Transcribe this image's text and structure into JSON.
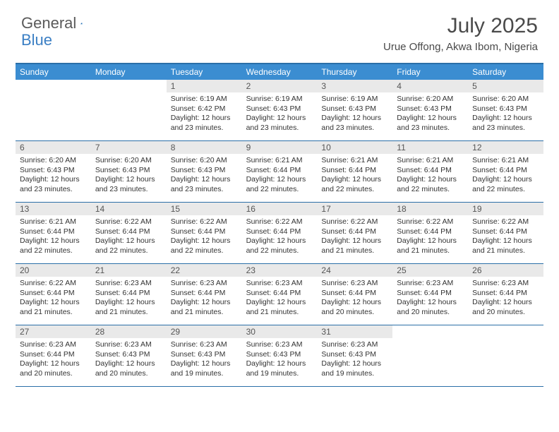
{
  "brand": {
    "part1": "General",
    "part2": "Blue"
  },
  "title": "July 2025",
  "location": "Urue Offong, Akwa Ibom, Nigeria",
  "colors": {
    "header_bg": "#3b8dd1",
    "header_text": "#ffffff",
    "border": "#2b6fa8",
    "daynum_bg": "#e9e9e9",
    "text": "#333333",
    "brand_blue": "#3b7fc4"
  },
  "weekdays": [
    "Sunday",
    "Monday",
    "Tuesday",
    "Wednesday",
    "Thursday",
    "Friday",
    "Saturday"
  ],
  "cells": [
    {
      "day": "",
      "lines": []
    },
    {
      "day": "",
      "lines": []
    },
    {
      "day": "1",
      "lines": [
        "Sunrise: 6:19 AM",
        "Sunset: 6:42 PM",
        "Daylight: 12 hours and 23 minutes."
      ]
    },
    {
      "day": "2",
      "lines": [
        "Sunrise: 6:19 AM",
        "Sunset: 6:43 PM",
        "Daylight: 12 hours and 23 minutes."
      ]
    },
    {
      "day": "3",
      "lines": [
        "Sunrise: 6:19 AM",
        "Sunset: 6:43 PM",
        "Daylight: 12 hours and 23 minutes."
      ]
    },
    {
      "day": "4",
      "lines": [
        "Sunrise: 6:20 AM",
        "Sunset: 6:43 PM",
        "Daylight: 12 hours and 23 minutes."
      ]
    },
    {
      "day": "5",
      "lines": [
        "Sunrise: 6:20 AM",
        "Sunset: 6:43 PM",
        "Daylight: 12 hours and 23 minutes."
      ]
    },
    {
      "day": "6",
      "lines": [
        "Sunrise: 6:20 AM",
        "Sunset: 6:43 PM",
        "Daylight: 12 hours and 23 minutes."
      ]
    },
    {
      "day": "7",
      "lines": [
        "Sunrise: 6:20 AM",
        "Sunset: 6:43 PM",
        "Daylight: 12 hours and 23 minutes."
      ]
    },
    {
      "day": "8",
      "lines": [
        "Sunrise: 6:20 AM",
        "Sunset: 6:43 PM",
        "Daylight: 12 hours and 23 minutes."
      ]
    },
    {
      "day": "9",
      "lines": [
        "Sunrise: 6:21 AM",
        "Sunset: 6:44 PM",
        "Daylight: 12 hours and 22 minutes."
      ]
    },
    {
      "day": "10",
      "lines": [
        "Sunrise: 6:21 AM",
        "Sunset: 6:44 PM",
        "Daylight: 12 hours and 22 minutes."
      ]
    },
    {
      "day": "11",
      "lines": [
        "Sunrise: 6:21 AM",
        "Sunset: 6:44 PM",
        "Daylight: 12 hours and 22 minutes."
      ]
    },
    {
      "day": "12",
      "lines": [
        "Sunrise: 6:21 AM",
        "Sunset: 6:44 PM",
        "Daylight: 12 hours and 22 minutes."
      ]
    },
    {
      "day": "13",
      "lines": [
        "Sunrise: 6:21 AM",
        "Sunset: 6:44 PM",
        "Daylight: 12 hours and 22 minutes."
      ]
    },
    {
      "day": "14",
      "lines": [
        "Sunrise: 6:22 AM",
        "Sunset: 6:44 PM",
        "Daylight: 12 hours and 22 minutes."
      ]
    },
    {
      "day": "15",
      "lines": [
        "Sunrise: 6:22 AM",
        "Sunset: 6:44 PM",
        "Daylight: 12 hours and 22 minutes."
      ]
    },
    {
      "day": "16",
      "lines": [
        "Sunrise: 6:22 AM",
        "Sunset: 6:44 PM",
        "Daylight: 12 hours and 22 minutes."
      ]
    },
    {
      "day": "17",
      "lines": [
        "Sunrise: 6:22 AM",
        "Sunset: 6:44 PM",
        "Daylight: 12 hours and 21 minutes."
      ]
    },
    {
      "day": "18",
      "lines": [
        "Sunrise: 6:22 AM",
        "Sunset: 6:44 PM",
        "Daylight: 12 hours and 21 minutes."
      ]
    },
    {
      "day": "19",
      "lines": [
        "Sunrise: 6:22 AM",
        "Sunset: 6:44 PM",
        "Daylight: 12 hours and 21 minutes."
      ]
    },
    {
      "day": "20",
      "lines": [
        "Sunrise: 6:22 AM",
        "Sunset: 6:44 PM",
        "Daylight: 12 hours and 21 minutes."
      ]
    },
    {
      "day": "21",
      "lines": [
        "Sunrise: 6:23 AM",
        "Sunset: 6:44 PM",
        "Daylight: 12 hours and 21 minutes."
      ]
    },
    {
      "day": "22",
      "lines": [
        "Sunrise: 6:23 AM",
        "Sunset: 6:44 PM",
        "Daylight: 12 hours and 21 minutes."
      ]
    },
    {
      "day": "23",
      "lines": [
        "Sunrise: 6:23 AM",
        "Sunset: 6:44 PM",
        "Daylight: 12 hours and 21 minutes."
      ]
    },
    {
      "day": "24",
      "lines": [
        "Sunrise: 6:23 AM",
        "Sunset: 6:44 PM",
        "Daylight: 12 hours and 20 minutes."
      ]
    },
    {
      "day": "25",
      "lines": [
        "Sunrise: 6:23 AM",
        "Sunset: 6:44 PM",
        "Daylight: 12 hours and 20 minutes."
      ]
    },
    {
      "day": "26",
      "lines": [
        "Sunrise: 6:23 AM",
        "Sunset: 6:44 PM",
        "Daylight: 12 hours and 20 minutes."
      ]
    },
    {
      "day": "27",
      "lines": [
        "Sunrise: 6:23 AM",
        "Sunset: 6:44 PM",
        "Daylight: 12 hours and 20 minutes."
      ]
    },
    {
      "day": "28",
      "lines": [
        "Sunrise: 6:23 AM",
        "Sunset: 6:43 PM",
        "Daylight: 12 hours and 20 minutes."
      ]
    },
    {
      "day": "29",
      "lines": [
        "Sunrise: 6:23 AM",
        "Sunset: 6:43 PM",
        "Daylight: 12 hours and 19 minutes."
      ]
    },
    {
      "day": "30",
      "lines": [
        "Sunrise: 6:23 AM",
        "Sunset: 6:43 PM",
        "Daylight: 12 hours and 19 minutes."
      ]
    },
    {
      "day": "31",
      "lines": [
        "Sunrise: 6:23 AM",
        "Sunset: 6:43 PM",
        "Daylight: 12 hours and 19 minutes."
      ]
    },
    {
      "day": "",
      "lines": []
    },
    {
      "day": "",
      "lines": []
    }
  ]
}
